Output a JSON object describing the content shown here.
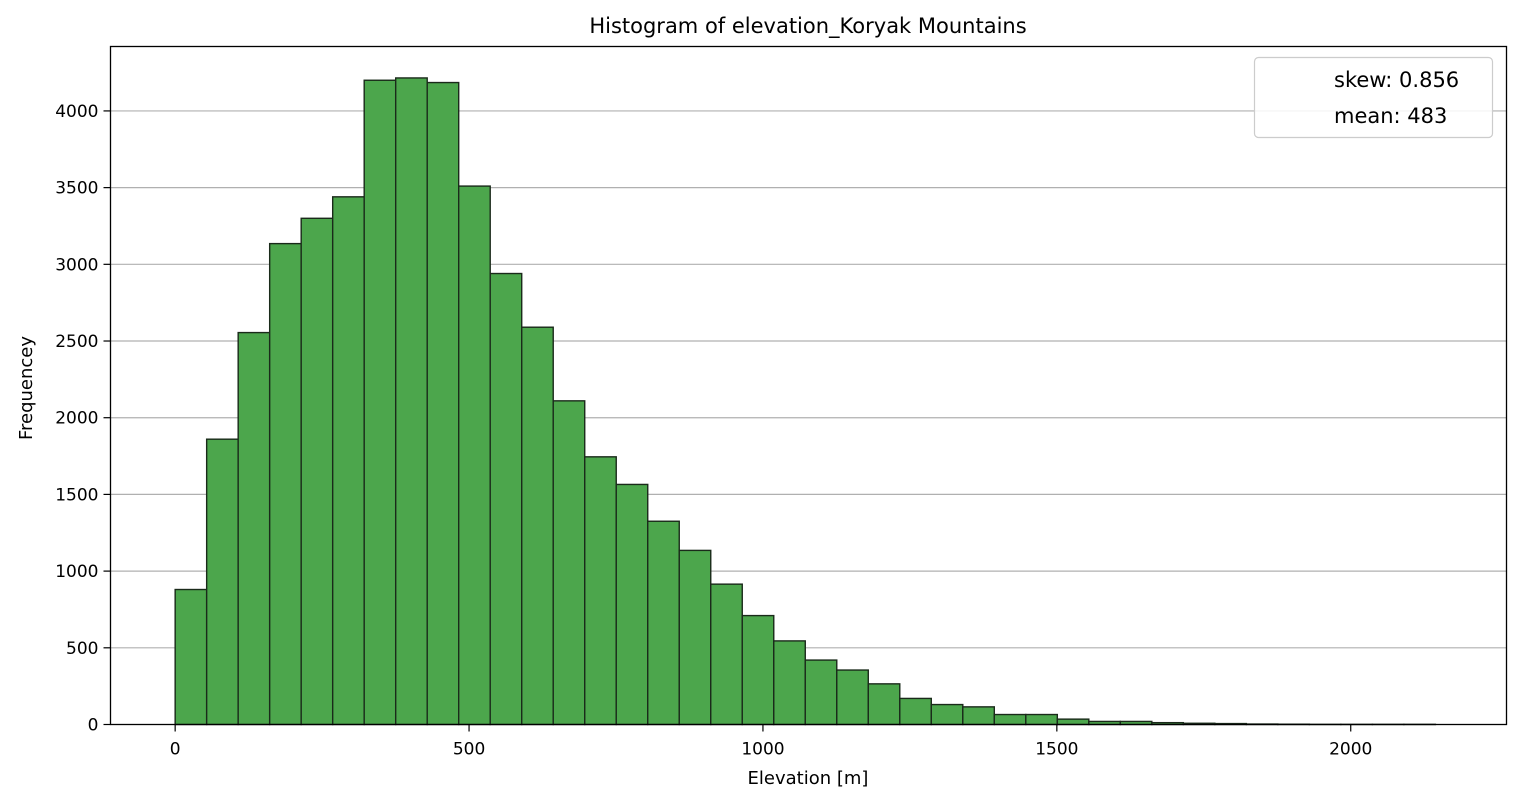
{
  "chart_data": {
    "type": "bar",
    "title": "Histogram of elevation_Koryak Mountains",
    "xlabel": "Elevation [m]",
    "ylabel": "Frequencey",
    "xlim": [
      -110,
      2265
    ],
    "ylim": [
      0,
      4420
    ],
    "bin_width": 53.6,
    "bin_start": 0,
    "values": [
      880,
      1860,
      2555,
      3135,
      3300,
      3440,
      4200,
      4215,
      4185,
      3510,
      2940,
      2590,
      2110,
      1745,
      1565,
      1325,
      1135,
      915,
      710,
      545,
      420,
      355,
      265,
      170,
      130,
      115,
      65,
      65,
      35,
      20,
      20,
      12,
      8,
      6,
      3,
      2,
      1,
      1,
      1,
      1
    ],
    "x_ticks": [
      0,
      500,
      1000,
      1500,
      2000
    ],
    "y_ticks": [
      0,
      500,
      1000,
      1500,
      2000,
      2500,
      3000,
      3500,
      4000
    ],
    "grid": "y",
    "legend_position": "top-right",
    "legend": [
      "skew: 0.856",
      "mean: 483"
    ],
    "colors": {
      "bar_fill": "#4ca64c",
      "bar_edge": "#1a2a1a",
      "grid": "#b0b0b0"
    }
  }
}
